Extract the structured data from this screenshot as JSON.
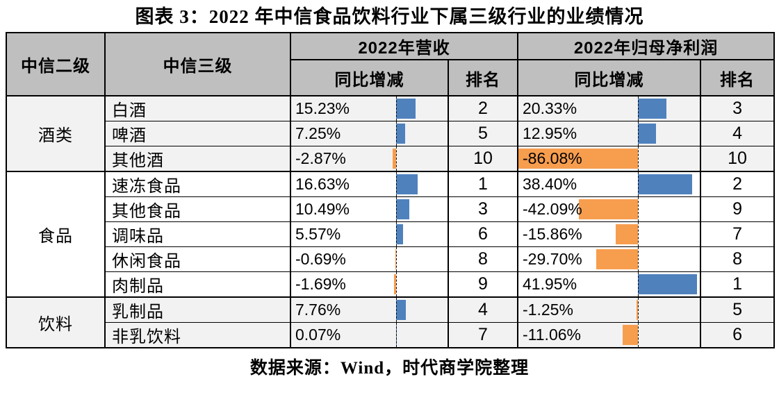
{
  "title": "图表 3：2022 年中信食品饮料行业下属三级行业的业绩情况",
  "source": "数据来源：Wind，时代商学院整理",
  "colors": {
    "positive_bar": "#4F81BD",
    "negative_bar": "#F79D4E",
    "header_bg": "#BFBFBF",
    "shaded_row_bg": "#F2F2F2",
    "border": "#000000"
  },
  "table": {
    "headers": {
      "level2": "中信二级",
      "level3": "中信三级",
      "revenue_group": "2022年营收",
      "profit_group": "2022年归母净利润",
      "rev_yoy": "同比增减",
      "rev_rank": "排名",
      "profit_yoy": "同比增减",
      "profit_rank": "排名"
    },
    "groups": [
      {
        "name": "酒类",
        "shaded": true,
        "rows": [
          {
            "name": "白酒",
            "rev_yoy": "15.23%",
            "rev_yoy_value": 15.23,
            "rev_rank": "2",
            "profit_yoy": "20.33%",
            "profit_yoy_value": 20.33,
            "profit_rank": "3"
          },
          {
            "name": "啤酒",
            "rev_yoy": "7.25%",
            "rev_yoy_value": 7.25,
            "rev_rank": "5",
            "profit_yoy": "12.95%",
            "profit_yoy_value": 12.95,
            "profit_rank": "4"
          },
          {
            "name": "其他酒",
            "rev_yoy": "-2.87%",
            "rev_yoy_value": -2.87,
            "rev_rank": "10",
            "profit_yoy": "-86.08%",
            "profit_yoy_value": -86.08,
            "profit_rank": "10"
          }
        ]
      },
      {
        "name": "食品",
        "shaded": false,
        "rows": [
          {
            "name": "速冻食品",
            "rev_yoy": "16.63%",
            "rev_yoy_value": 16.63,
            "rev_rank": "1",
            "profit_yoy": "38.40%",
            "profit_yoy_value": 38.4,
            "profit_rank": "2"
          },
          {
            "name": "其他食品",
            "rev_yoy": "10.49%",
            "rev_yoy_value": 10.49,
            "rev_rank": "3",
            "profit_yoy": "-42.09%",
            "profit_yoy_value": -42.09,
            "profit_rank": "9"
          },
          {
            "name": "调味品",
            "rev_yoy": "5.57%",
            "rev_yoy_value": 5.57,
            "rev_rank": "6",
            "profit_yoy": "-15.86%",
            "profit_yoy_value": -15.86,
            "profit_rank": "7"
          },
          {
            "name": "休闲食品",
            "rev_yoy": "-0.69%",
            "rev_yoy_value": -0.69,
            "rev_rank": "8",
            "profit_yoy": "-29.70%",
            "profit_yoy_value": -29.7,
            "profit_rank": "8"
          },
          {
            "name": "肉制品",
            "rev_yoy": "-1.69%",
            "rev_yoy_value": -1.69,
            "rev_rank": "9",
            "profit_yoy": "41.95%",
            "profit_yoy_value": 41.95,
            "profit_rank": "1"
          }
        ]
      },
      {
        "name": "饮料",
        "shaded": true,
        "rows": [
          {
            "name": "乳制品",
            "rev_yoy": "7.76%",
            "rev_yoy_value": 7.76,
            "rev_rank": "4",
            "profit_yoy": "-1.25%",
            "profit_yoy_value": -1.25,
            "profit_rank": "5"
          },
          {
            "name": "非乳饮料",
            "rev_yoy": "0.07%",
            "rev_yoy_value": 0.07,
            "rev_rank": "7",
            "profit_yoy": "-11.06%",
            "profit_yoy_value": -11.06,
            "profit_rank": "6"
          }
        ]
      }
    ]
  },
  "chart_data": {
    "type": "table",
    "title": "图表 3：2022 年中信食品饮料行业下属三级行业的业绩情况",
    "columns": [
      "中信二级",
      "中信三级",
      "2022年营收 同比增减",
      "2022年营收 排名",
      "2022年归母净利润 同比增减",
      "2022年归母净利润 排名"
    ],
    "rows": [
      [
        "酒类",
        "白酒",
        15.23,
        2,
        20.33,
        3
      ],
      [
        "酒类",
        "啤酒",
        7.25,
        5,
        12.95,
        4
      ],
      [
        "酒类",
        "其他酒",
        -2.87,
        10,
        -86.08,
        10
      ],
      [
        "食品",
        "速冻食品",
        16.63,
        1,
        38.4,
        2
      ],
      [
        "食品",
        "其他食品",
        10.49,
        3,
        -42.09,
        9
      ],
      [
        "食品",
        "调味品",
        5.57,
        6,
        -15.86,
        7
      ],
      [
        "食品",
        "休闲食品",
        -0.69,
        8,
        -29.7,
        8
      ],
      [
        "食品",
        "肉制品",
        -1.69,
        9,
        41.95,
        1
      ],
      [
        "饮料",
        "乳制品",
        7.76,
        4,
        -1.25,
        5
      ],
      [
        "饮料",
        "非乳饮料",
        0.07,
        7,
        -11.06,
        6
      ]
    ],
    "units": "percent (同比增减), integer rank (排名)",
    "annotations": "同比增减 cells contain in-cell data bars with a dashed zero axis; positive bars blue (#4F81BD) extend right, negative bars orange (#F79D4E) extend left",
    "source": "数据来源：Wind，时代商学院整理"
  }
}
